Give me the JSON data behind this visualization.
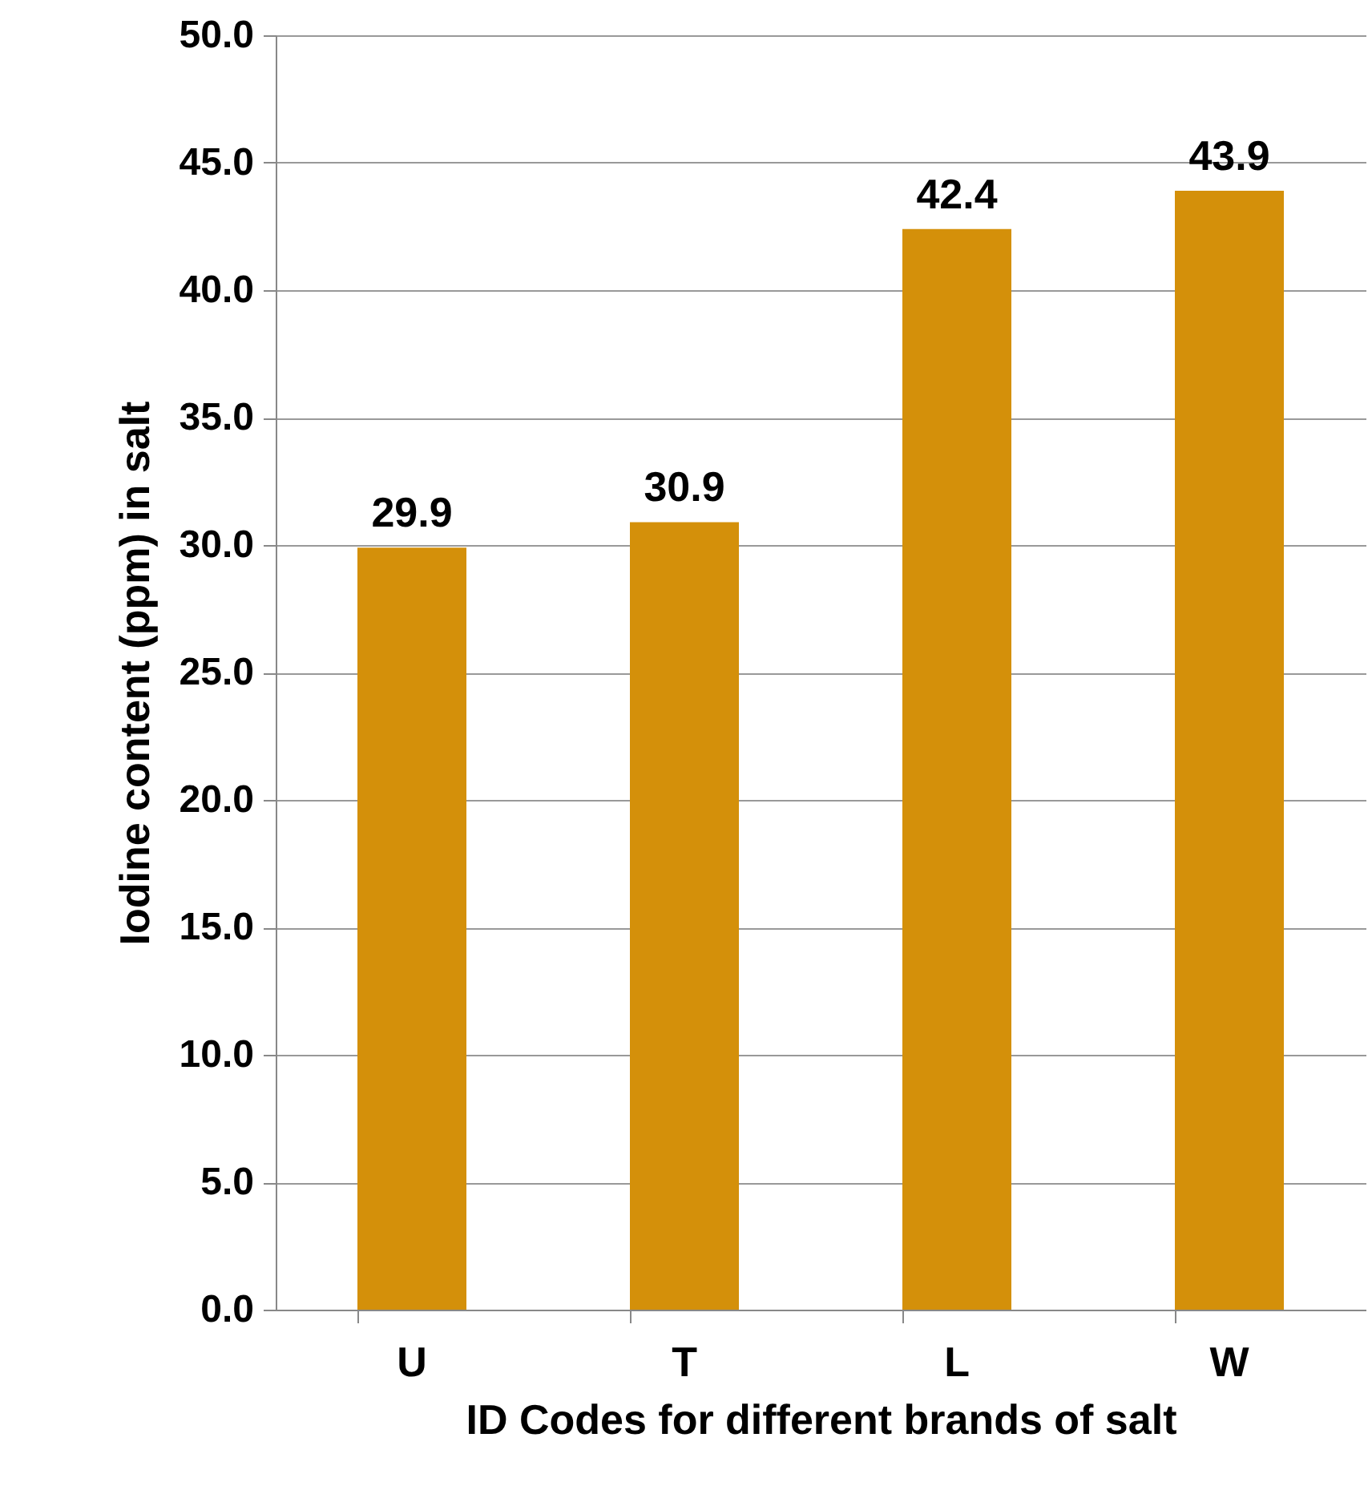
{
  "chart_data": {
    "type": "bar",
    "xlabel": "ID Codes for different brands of salt",
    "ylabel": "Iodine content (ppm) in salt",
    "categories": [
      "U",
      "T",
      "L",
      "W"
    ],
    "values": [
      29.9,
      30.9,
      42.4,
      43.9
    ],
    "color": "#d4900a",
    "ylim": [
      0,
      50
    ],
    "yticks": [
      {
        "value": 0,
        "label": "0.0"
      },
      {
        "value": 5,
        "label": "5.0"
      },
      {
        "value": 10,
        "label": "10.0"
      },
      {
        "value": 15,
        "label": "15.0"
      },
      {
        "value": 20,
        "label": "20.0"
      },
      {
        "value": 25,
        "label": "25.0"
      },
      {
        "value": 30,
        "label": "30.0"
      },
      {
        "value": 35,
        "label": "35.0"
      },
      {
        "value": 40,
        "label": "40.0"
      },
      {
        "value": 45,
        "label": "45.0"
      },
      {
        "value": 50,
        "label": "50.0"
      }
    ],
    "grid": "y",
    "data_labels": true
  }
}
